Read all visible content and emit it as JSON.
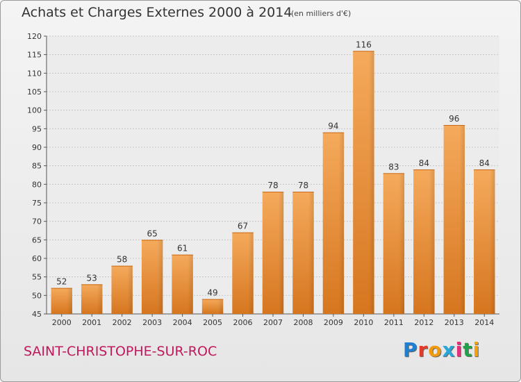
{
  "header": {
    "title": "Achats et Charges Externes 2000 à 2014",
    "unit": "(en milliers d'€)"
  },
  "footer": {
    "commune": "SAINT-CHRISTOPHE-SUR-ROC",
    "brand_letters": [
      "P",
      "r",
      "o",
      "x",
      "i",
      "t",
      "i"
    ],
    "brand_colors": [
      "#1f7fd1",
      "#e23b2a",
      "#f29a0c",
      "#2aa5d6",
      "#e0337a",
      "#1fa34a",
      "#f2a20c"
    ]
  },
  "chart_data": {
    "type": "bar",
    "title": "Achats et Charges Externes 2000 à 2014",
    "categories": [
      "2000",
      "2001",
      "2002",
      "2003",
      "2004",
      "2005",
      "2006",
      "2007",
      "2008",
      "2009",
      "2010",
      "2011",
      "2012",
      "2013",
      "2014"
    ],
    "values": [
      52,
      53,
      58,
      65,
      61,
      49,
      67,
      78,
      78,
      94,
      116,
      83,
      84,
      96,
      84
    ],
    "ylim": [
      45,
      120
    ],
    "yticks": [
      45,
      50,
      55,
      60,
      65,
      70,
      75,
      80,
      85,
      90,
      95,
      100,
      105,
      110,
      115,
      120
    ],
    "grid": true,
    "legend": "none",
    "bar_color": "#f0a050",
    "bar_color_dark": "#d07020",
    "xlabel": "",
    "ylabel": ""
  }
}
